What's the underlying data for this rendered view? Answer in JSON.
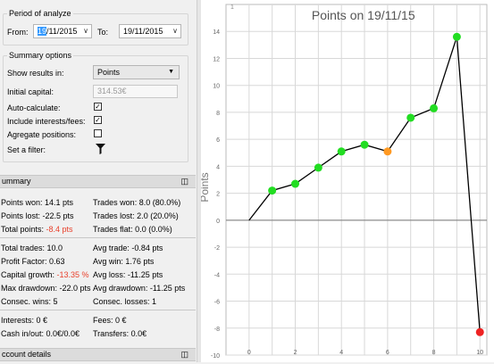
{
  "period": {
    "title": "Period of analyze",
    "from_label": "From:",
    "from_day": "19",
    "from_rest": "/11/2015",
    "to_label": "To:",
    "to_value": "19/11/2015"
  },
  "summary_options": {
    "title": "Summary options",
    "show_results_label": "Show results in:",
    "show_results_value": "Points",
    "initial_capital_label": "Initial capital:",
    "initial_capital_value": "314.53€",
    "auto_calculate_label": "Auto-calculate:",
    "auto_calculate_checked": true,
    "include_fees_label": "Include interests/fees:",
    "include_fees_checked": true,
    "aggregate_label": "Agregate positions:",
    "aggregate_checked": false,
    "filter_label": "Set a filter:"
  },
  "summary": {
    "header": "ummary",
    "points_won": "Points won: 14.1 pts",
    "trades_won": "Trades won: 8.0 (80.0%)",
    "points_lost": "Points lost: -22.5 pts",
    "trades_lost": "Trades lost: 2.0 (20.0%)",
    "total_points_label": "Total points: ",
    "total_points_value": "-8.4 pts",
    "trades_flat": "Trades flat: 0.0 (0.0%)",
    "total_trades": "Total trades: 10.0",
    "avg_trade": "Avg trade: -0.84 pts",
    "profit_factor": "Profit Factor: 0.63",
    "avg_win": "Avg win: 1.76 pts",
    "capital_growth_label": "Capital growth: ",
    "capital_growth_value": "-13.35 %",
    "avg_loss": "Avg loss: -11.25 pts",
    "max_drawdown": "Max drawdown: -22.0 pts",
    "avg_drawdown": "Avg drawdown: -11.25 pts",
    "consec_wins": "Consec. wins: 5",
    "consec_losses": "Consec. losses: 1",
    "interests": "Interests: 0 €",
    "fees": "Fees: 0 €",
    "cash_inout": "Cash in/out: 0.0€/0.0€",
    "transfers": "Transfers: 0.0€"
  },
  "account_details": {
    "header": "ccount details"
  },
  "icons": {
    "pin": "pin-icon",
    "filter": "filter-funnel-icon",
    "calendar_dropdown": "chevron-down-icon"
  },
  "chart_data": {
    "type": "line",
    "title": "Points on 19/11/15",
    "ylabel": "Points",
    "corner_label": "1",
    "x": [
      0,
      1,
      2,
      3,
      4,
      5,
      6,
      7,
      8,
      9,
      10
    ],
    "y": [
      0,
      2.2,
      2.7,
      3.9,
      5.1,
      5.6,
      5.1,
      7.6,
      8.3,
      13.6,
      -8.3
    ],
    "point_colors": [
      "none",
      "#22dd22",
      "#22dd22",
      "#22dd22",
      "#22dd22",
      "#22dd22",
      "#ff9922",
      "#22dd22",
      "#22dd22",
      "#22dd22",
      "#ee2222"
    ],
    "xlim": [
      -1,
      10.3
    ],
    "ylim": [
      -10,
      16
    ],
    "xticks": [
      0,
      2,
      4,
      6,
      8,
      10
    ],
    "yticks": [
      -10,
      -8,
      -6,
      -4,
      -2,
      0,
      2,
      4,
      6,
      8,
      10,
      12,
      14
    ],
    "grid": true,
    "colors": {
      "line": "#000000",
      "grid": "#d8d8d8",
      "win": "#22dd22",
      "breakeven": "#ff9922",
      "loss": "#ee2222"
    }
  }
}
